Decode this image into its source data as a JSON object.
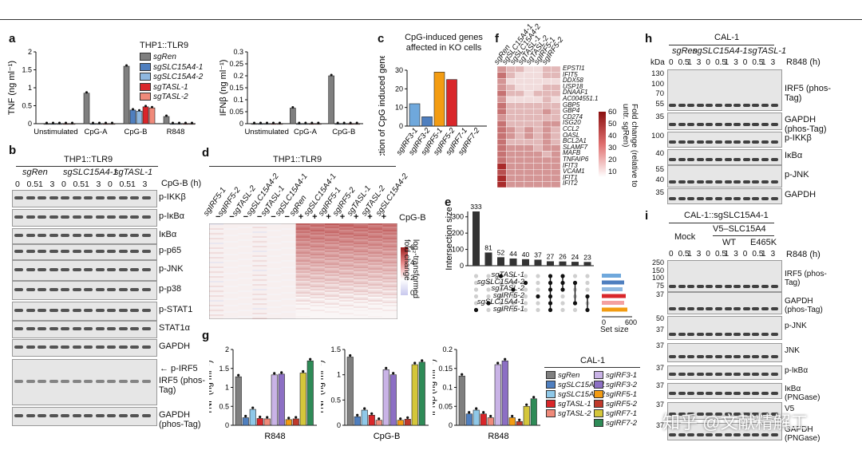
{
  "panel_letters": [
    "a",
    "b",
    "c",
    "d",
    "e",
    "f",
    "g",
    "h",
    "i"
  ],
  "a": {
    "legend_title": "THP1::TLR9",
    "legend": [
      {
        "label": "sgRen",
        "color": "#7f7f7f"
      },
      {
        "label": "sgSLC15A4-1",
        "color": "#4f7fbf"
      },
      {
        "label": "sgSLC15A4-2",
        "color": "#8fb8e0"
      },
      {
        "label": "sgTASL-1",
        "color": "#d9262a"
      },
      {
        "label": "sgTASL-2",
        "color": "#f08a7a"
      }
    ],
    "tnf_ylabel": "TNF (ng ml⁻¹)",
    "ifn_ylabel": "IFNβ (ng ml⁻¹)"
  },
  "b": {
    "title": "THP1::TLR9",
    "groups": [
      "sgRen",
      "sgSLC15A4-1",
      "sgTASL-1"
    ],
    "time_label": "CpG-B (h)",
    "times": [
      "0",
      "0.5",
      "1",
      "3",
      "0",
      "0.5",
      "1",
      "3",
      "0",
      "0.5",
      "1",
      "3"
    ],
    "blots": [
      "p-IKKβ",
      "p-IκBα",
      "IκBα",
      "p-p65",
      "p-JNK",
      "p-p38",
      "p-STAT1",
      "STAT1α",
      "GAPDH",
      "IRF5 (phos-Tag)",
      "GAPDH (phos-Tag)"
    ],
    "pirf5_label": "← p-IRF5"
  },
  "c": {
    "title": "CpG-induced genes affected in KO cells",
    "ylabel": "Fraction of CpG induced genes (%)"
  },
  "d": {
    "title": "THP1::TLR9",
    "cols": [
      "sgIRF5-1",
      "sgIRF5-2",
      "sgTASL-2",
      "sgSLC15A4-2",
      "sgTASL-1",
      "sgSLC15A4-1",
      "sgRen",
      "sgSLC15A4-1",
      "sgIRF5-1",
      "sgIRF5-2",
      "sgTASL-1",
      "sgTASL-2",
      "sgSLC15A4-2"
    ],
    "signs": [
      "−",
      "−",
      "−",
      "−",
      "−",
      "−",
      "+",
      "+",
      "+",
      "+",
      "+",
      "+",
      "+"
    ],
    "cpg_label": "CpG-B",
    "scale_label": "log₂-transformed fold change",
    "scale_ticks": [
      "6",
      "4",
      "2",
      "0"
    ]
  },
  "e": {
    "ylabel": "Intersection size",
    "rows": [
      "sgTASL-1",
      "sgSLC15A4-2",
      "sgTASL-2",
      "sgIRF5-2",
      "sgSLC15A4-1",
      "sgIRF5-1"
    ],
    "set_colors": [
      "#6fa8dc",
      "#4f7fbf",
      "#8fb8e0",
      "#d9262a",
      "#f4a0a0",
      "#f39c12"
    ],
    "set_size_label": "Set size",
    "set_ticks": [
      "0",
      "600"
    ]
  },
  "f": {
    "cols": [
      "sgRen",
      "sgSLC15A4-1",
      "sgSLC15A4-2",
      "sgTASL-1",
      "sgTASL-2",
      "sgIRF5-1",
      "sgIRF5-2"
    ],
    "genes": [
      "EPSTI1",
      "IFIT5",
      "DDX58",
      "USP18",
      "DNAAF1",
      "AC004551.1",
      "GBP5",
      "GBP4",
      "CD274",
      "ISG20",
      "CCL2",
      "OASL",
      "BCL2A1",
      "SLAMF7",
      "MAFB",
      "TNFAIP6",
      "IFIT3",
      "VCAM1",
      "IFIT1",
      "IFIT2"
    ],
    "scale_label": "Fold change (relative to untr. sgRen)",
    "scale_ticks": [
      "60",
      "50",
      "40",
      "30",
      "20",
      "10"
    ]
  },
  "g": {
    "legend_title": "CAL-1",
    "legend": [
      {
        "label": "sgRen",
        "color": "#7f7f7f"
      },
      {
        "label": "sgSLC15A4-1",
        "color": "#4f7fbf"
      },
      {
        "label": "sgSLC15A4-2",
        "color": "#8fc8e8"
      },
      {
        "label": "sgTASL-1",
        "color": "#d9262a"
      },
      {
        "label": "sgTASL-2",
        "color": "#f08a7a"
      },
      {
        "label": "sgIRF3-1",
        "color": "#c9b3e6"
      },
      {
        "label": "sgIRF3-2",
        "color": "#8c6fc4"
      },
      {
        "label": "sgIRF5-1",
        "color": "#f39c12"
      },
      {
        "label": "sgIRF5-2",
        "color": "#c0392b"
      },
      {
        "label": "sgIRF7-1",
        "color": "#d4c63a"
      },
      {
        "label": "sgIRF7-2",
        "color": "#2e8b57"
      }
    ],
    "tnf_ylabel": "TNF (ng ml⁻¹)",
    "ifn_ylabel": "IFNβ (ng ml⁻¹)"
  },
  "h": {
    "title": "CAL-1",
    "groups": [
      "sgRen",
      "sgSLC15A4-1",
      "sgTASL-1"
    ],
    "time_label": "R848 (h)",
    "times": [
      "0",
      "0.5",
      "1",
      "3",
      "0",
      "0.5",
      "1",
      "3",
      "0",
      "0.5",
      "1",
      "3"
    ],
    "kda": "kDa",
    "markers": [
      [
        "130",
        "100",
        "70",
        "55"
      ],
      [
        "35"
      ],
      [
        "100"
      ],
      [
        "40"
      ],
      [
        "55",
        "40"
      ],
      [
        "35"
      ]
    ],
    "blots": [
      "IRF5 (phos-Tag)",
      "GAPDH (phos-Tag)",
      "p-IKKβ",
      "IκBα",
      "p-JNK",
      "GAPDH"
    ]
  },
  "i": {
    "title": "CAL-1::sgSLC15A4-1",
    "v5_label": "V5–SLC15A4",
    "groups": [
      "Mock",
      "WT",
      "E465K"
    ],
    "time_label": "R848 (h)",
    "times": [
      "0",
      "0.5",
      "1",
      "3",
      "0",
      "0.5",
      "1",
      "3",
      "0",
      "0.5",
      "1",
      "3"
    ],
    "markers": [
      [
        "250",
        "150",
        "100",
        "75"
      ],
      [
        "37"
      ],
      [
        "50",
        "37"
      ],
      [
        "37"
      ],
      [
        "37"
      ],
      [
        "37"
      ],
      [
        "37"
      ],
      [
        "37"
      ]
    ],
    "blots": [
      "IRF5 (phos-Tag)",
      "GAPDH (phos-Tag)",
      "p-JNK",
      "JNK",
      "p-IκBα",
      "IκBα (PNGase)",
      "V5",
      "GAPDH (PNGase)"
    ]
  },
  "watermark": "知乎 @文献精解工",
  "chart_data": [
    {
      "type": "bar",
      "panel": "a",
      "ylabel": "TNF (ng ml⁻¹)",
      "ylim": [
        0,
        2.0
      ],
      "yticks": [
        0,
        0.5,
        1.0,
        1.5,
        2.0
      ],
      "categories": [
        "Unstimulated",
        "CpG-A",
        "CpG-B",
        "R848"
      ],
      "series": [
        {
          "name": "sgRen",
          "values": [
            0,
            0.85,
            1.6,
            0.2
          ]
        },
        {
          "name": "sgSLC15A4-1",
          "values": [
            0,
            0,
            0.38,
            0
          ]
        },
        {
          "name": "sgSLC15A4-2",
          "values": [
            0,
            0,
            0.35,
            0
          ]
        },
        {
          "name": "sgTASL-1",
          "values": [
            0,
            0,
            0.47,
            0
          ]
        },
        {
          "name": "sgTASL-2",
          "values": [
            0,
            0,
            0.44,
            0
          ]
        }
      ]
    },
    {
      "type": "bar",
      "panel": "a",
      "ylabel": "IFNβ (ng ml⁻¹)",
      "ylim": [
        0,
        0.3
      ],
      "yticks": [
        0,
        0.05,
        0.1,
        0.15,
        0.2,
        0.25,
        0.3
      ],
      "categories": [
        "Unstimulated",
        "CpG-A",
        "CpG-B"
      ],
      "series": [
        {
          "name": "sgRen",
          "values": [
            0,
            0.065,
            0.2
          ]
        },
        {
          "name": "sgSLC15A4-1",
          "values": [
            0,
            0,
            0
          ]
        },
        {
          "name": "sgSLC15A4-2",
          "values": [
            0,
            0,
            0
          ]
        },
        {
          "name": "sgTASL-1",
          "values": [
            0,
            0,
            0
          ]
        },
        {
          "name": "sgTASL-2",
          "values": [
            0,
            0,
            0
          ]
        }
      ]
    },
    {
      "type": "bar",
      "panel": "c",
      "ylabel": "Fraction of CpG induced genes (%)",
      "ylim": [
        0,
        30
      ],
      "yticks": [
        0,
        10,
        20,
        30
      ],
      "categories": [
        "sgIRF3-1",
        "sgIRF3-2",
        "sgIRF5-1",
        "sgIRF5-2",
        "sgIRF7-1",
        "sgIRF7-2"
      ],
      "values": [
        12,
        5,
        29,
        25,
        0,
        0
      ],
      "colors": [
        "#6fa8dc",
        "#4f7fbf",
        "#f39c12",
        "#d9262a",
        "#7f7f7f",
        "#7f7f7f"
      ]
    },
    {
      "type": "bar",
      "panel": "e",
      "ylabel": "Intersection size",
      "ylim": [
        0,
        300
      ],
      "yticks": [
        0,
        100,
        200,
        300
      ],
      "values": [
        333,
        81,
        52,
        44,
        40,
        37,
        27,
        26,
        24,
        23
      ]
    },
    {
      "type": "bar",
      "panel": "g",
      "ylabel": "TNF (ng ml⁻¹)",
      "xlabel": "R848",
      "ylim": [
        0,
        2.0
      ],
      "yticks": [
        0,
        0.5,
        1.0,
        1.5,
        2.0
      ],
      "values": [
        1.28,
        0.2,
        0.42,
        0.18,
        0.17,
        1.33,
        1.35,
        0.15,
        0.17,
        1.38,
        1.7
      ]
    },
    {
      "type": "bar",
      "panel": "g",
      "ylabel": "TNF (ng ml⁻¹)",
      "xlabel": "CpG-B",
      "ylim": [
        0,
        1.5
      ],
      "yticks": [
        0,
        0.5,
        1.0,
        1.5
      ],
      "values": [
        1.35,
        0.17,
        0.3,
        0.2,
        0.1,
        1.1,
        1.0,
        0.1,
        0.12,
        1.2,
        1.25
      ]
    },
    {
      "type": "bar",
      "panel": "g",
      "ylabel": "IFNβ (ng ml⁻¹)",
      "xlabel": "R848",
      "ylim": [
        0,
        0.2
      ],
      "yticks": [
        0,
        0.05,
        0.1,
        0.15,
        0.2
      ],
      "values": [
        0.13,
        0.03,
        0.04,
        0.03,
        0.02,
        0.16,
        0.17,
        0.02,
        0.01,
        0.05,
        0.07
      ]
    }
  ]
}
